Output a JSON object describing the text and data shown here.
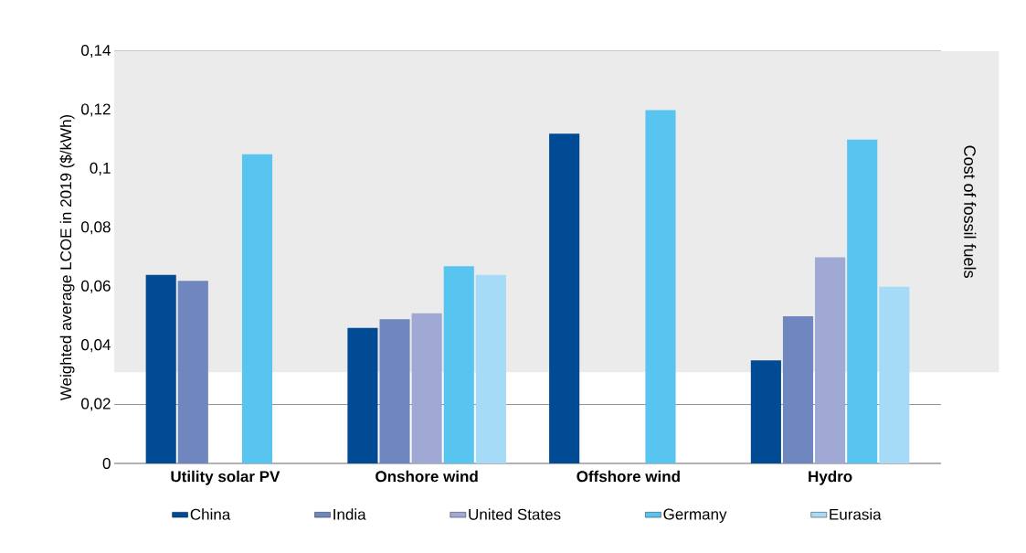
{
  "chart_data": {
    "type": "bar",
    "ylabel": "Weighted average LCOE in 2019 ($/kWh)",
    "categories": [
      "Utility solar PV",
      "Onshore wind",
      "Offshore wind",
      "Hydro"
    ],
    "series": [
      {
        "name": "China",
        "color": "#004b93",
        "values": [
          0.064,
          0.046,
          0.112,
          0.035
        ]
      },
      {
        "name": "India",
        "color": "#6f86bf",
        "values": [
          0.062,
          0.049,
          null,
          0.05
        ]
      },
      {
        "name": "United States",
        "color": "#a0a8d4",
        "values": [
          null,
          0.051,
          null,
          0.07
        ]
      },
      {
        "name": "Germany",
        "color": "#58c4f0",
        "values": [
          0.105,
          0.067,
          0.12,
          0.11
        ]
      },
      {
        "name": "Eurasia",
        "color": "#a5dbf6",
        "values": [
          null,
          0.064,
          null,
          0.06
        ]
      }
    ],
    "ylim": [
      0,
      0.14
    ],
    "yticks": [
      0,
      {
        "value": 0.02,
        "label": "0,02"
      },
      {
        "value": 0.04,
        "label": "0,04"
      },
      {
        "value": 0.06,
        "label": "0,06"
      },
      {
        "value": 0.08,
        "label": "0,08"
      },
      {
        "value": 0.1,
        "label": "0,1"
      },
      {
        "value": 0.12,
        "label": "0,12"
      },
      {
        "value": 0.14,
        "label": "0,14"
      }
    ],
    "bands": [
      {
        "axis": "y",
        "from": 0.031,
        "to": 0.14,
        "label": "Cost of fossil fuels",
        "color": "#ebebeb"
      }
    ],
    "grid": "y",
    "legend": "bottom"
  }
}
